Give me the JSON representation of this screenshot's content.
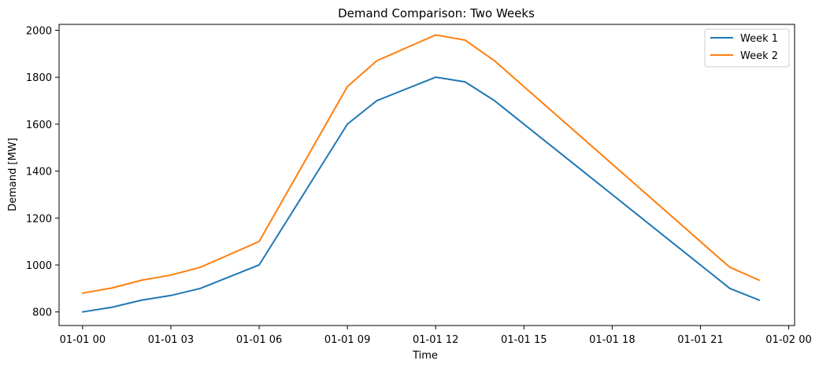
{
  "chart_data": {
    "type": "line",
    "title": "Demand Comparison: Two Weeks",
    "xlabel": "Time",
    "ylabel": "Demand [MW]",
    "x": [
      "01-01 00",
      "01-01 01",
      "01-01 02",
      "01-01 03",
      "01-01 04",
      "01-01 06",
      "01-01 09",
      "01-01 10",
      "01-01 12",
      "01-01 13",
      "01-01 14",
      "01-01 22",
      "01-01 23"
    ],
    "x_hours": [
      0,
      1,
      2,
      3,
      4,
      6,
      9,
      10,
      12,
      13,
      14,
      22,
      23
    ],
    "xlim": [
      -0.8,
      24.2
    ],
    "ylim": [
      742,
      2025
    ],
    "x_ticks": [
      {
        "hour": 0,
        "label": "01-01 00"
      },
      {
        "hour": 3,
        "label": "01-01 03"
      },
      {
        "hour": 6,
        "label": "01-01 06"
      },
      {
        "hour": 9,
        "label": "01-01 09"
      },
      {
        "hour": 12,
        "label": "01-01 12"
      },
      {
        "hour": 15,
        "label": "01-01 15"
      },
      {
        "hour": 18,
        "label": "01-01 18"
      },
      {
        "hour": 21,
        "label": "01-01 21"
      },
      {
        "hour": 24,
        "label": "01-02 00"
      }
    ],
    "y_ticks": [
      800,
      1000,
      1200,
      1400,
      1600,
      1800,
      2000
    ],
    "grid": false,
    "legend": "top-right",
    "series": [
      {
        "name": "Week 1",
        "color": "#1f77b4",
        "values": [
          800,
          820,
          850,
          870,
          900,
          1000,
          1600,
          1700,
          1800,
          1780,
          1700,
          900,
          850
        ]
      },
      {
        "name": "Week 2",
        "color": "#ff7f0e",
        "values": [
          880,
          902,
          935,
          957,
          990,
          1100,
          1760,
          1870,
          1980,
          1958,
          1870,
          990,
          935
        ]
      }
    ]
  }
}
